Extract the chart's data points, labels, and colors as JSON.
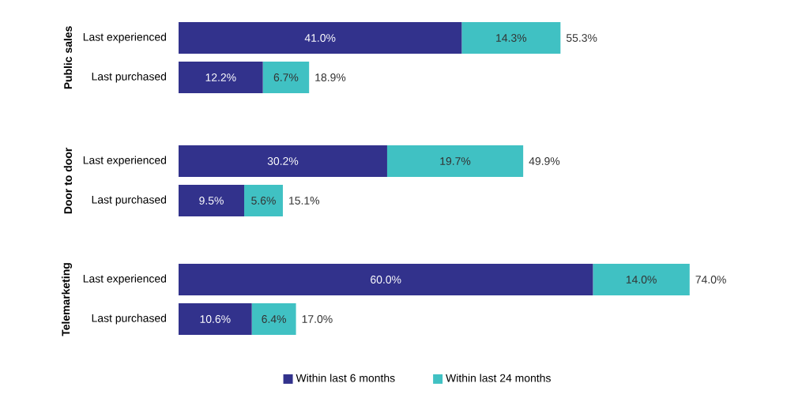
{
  "chart_data": [
    {
      "type": "bar",
      "orientation": "horizontal",
      "stacked": true,
      "ylabel": "Public sales",
      "categories": [
        "Last experienced",
        "Last purchased"
      ],
      "legend": false,
      "series": [
        {
          "color": "#32328c",
          "values": [
            41.0,
            12.2
          ],
          "value_labels": [
            "41.0%",
            "12.2%"
          ]
        },
        {
          "color": "#40c1c3",
          "values": [
            14.3,
            6.7
          ],
          "value_labels": [
            "14.3%",
            "6.7%"
          ]
        }
      ],
      "totals": [
        "55.3%",
        "18.9%"
      ]
    },
    {
      "type": "bar",
      "orientation": "horizontal",
      "stacked": true,
      "ylabel": "Door to door",
      "categories": [
        "Last experienced",
        "Last purchased"
      ],
      "legend": false,
      "series": [
        {
          "color": "#32328c",
          "values": [
            30.2,
            9.5
          ],
          "value_labels": [
            "30.2%",
            "9.5%"
          ]
        },
        {
          "color": "#40c1c3",
          "values": [
            19.7,
            5.6
          ],
          "value_labels": [
            "19.7%",
            "5.6%"
          ]
        }
      ],
      "totals": [
        "49.9%",
        "15.1%"
      ]
    },
    {
      "type": "bar",
      "orientation": "horizontal",
      "stacked": true,
      "ylabel": "Telemarketing",
      "categories": [
        "Last experienced",
        "Last purchased"
      ],
      "legend": "bottom",
      "series": [
        {
          "name": "Within last 6 months",
          "color": "#32328c",
          "values": [
            60.0,
            10.6
          ],
          "value_labels": [
            "60.0%",
            "10.6%"
          ]
        },
        {
          "name": "Within last 24 months",
          "color": "#40c1c3",
          "values": [
            14.0,
            6.4
          ],
          "value_labels": [
            "14.0%",
            "6.4%"
          ]
        }
      ],
      "totals": [
        "74.0%",
        "17.0%"
      ]
    }
  ]
}
